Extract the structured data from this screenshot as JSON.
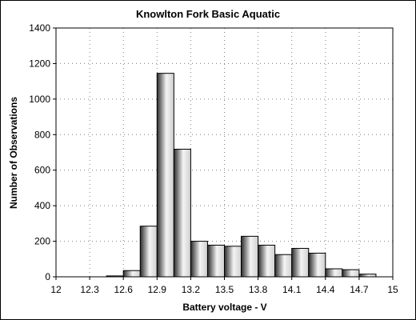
{
  "chart_data": {
    "type": "bar",
    "title": "Knowlton Fork Basic Aquatic",
    "xlabel": "Battery voltage - V",
    "ylabel": "Number of Observations",
    "xlim": [
      12,
      15
    ],
    "ylim": [
      0,
      1400
    ],
    "x_ticks": [
      "12",
      "12.3",
      "12.6",
      "12.9",
      "13.2",
      "13.5",
      "13.8",
      "14.1",
      "14.4",
      "14.7",
      "15"
    ],
    "y_ticks": [
      "0",
      "200",
      "400",
      "600",
      "800",
      "1000",
      "1200",
      "1400"
    ],
    "bin_width": 0.15,
    "bins": [
      {
        "start": 12.45,
        "value": 5
      },
      {
        "start": 12.6,
        "value": 35
      },
      {
        "start": 12.75,
        "value": 285
      },
      {
        "start": 12.9,
        "value": 1145
      },
      {
        "start": 13.05,
        "value": 718
      },
      {
        "start": 13.2,
        "value": 200
      },
      {
        "start": 13.35,
        "value": 178
      },
      {
        "start": 13.5,
        "value": 172
      },
      {
        "start": 13.65,
        "value": 228
      },
      {
        "start": 13.8,
        "value": 178
      },
      {
        "start": 13.95,
        "value": 125
      },
      {
        "start": 14.1,
        "value": 160
      },
      {
        "start": 14.25,
        "value": 133
      },
      {
        "start": 14.4,
        "value": 45
      },
      {
        "start": 14.55,
        "value": 40
      },
      {
        "start": 14.7,
        "value": 15
      }
    ],
    "grid": true,
    "colors": {
      "bar_dark": "#2a2a2a",
      "bar_light": "#f4f4f4",
      "grid": "#7f7f7f"
    }
  }
}
